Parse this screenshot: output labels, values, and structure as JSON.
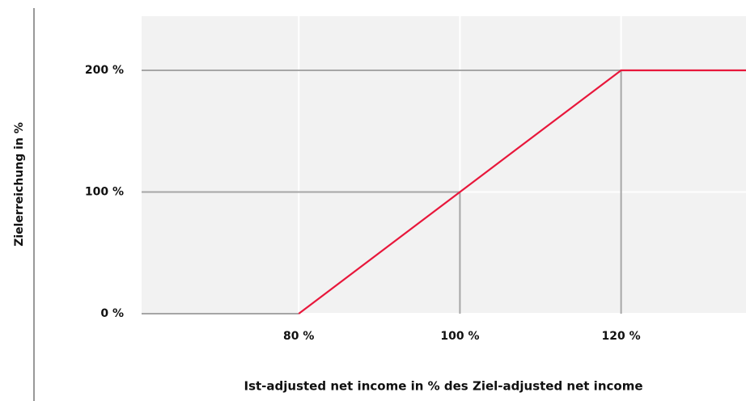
{
  "chart_data": {
    "type": "line",
    "x_label": "Ist-adjusted net income in % des Ziel-adjusted net income",
    "y_label": "Zielerreichung in %",
    "x": [
      80,
      100,
      120,
      135.5
    ],
    "series": [
      {
        "color": "#e8173b",
        "values": [
          0,
          100,
          200,
          200
        ]
      }
    ],
    "xlim": [
      60.5,
      135.5
    ],
    "xticks": [
      {
        "value": 80,
        "label": "80 %"
      },
      {
        "value": 100,
        "label": "100 %"
      },
      {
        "value": 120,
        "label": "120 %"
      }
    ],
    "ylim": [
      0,
      244.5
    ],
    "yticks": [
      {
        "value": 0,
        "label": "0 %"
      },
      {
        "value": 100,
        "label": "100 %"
      },
      {
        "value": 200,
        "label": "200 %"
      }
    ],
    "grid": true,
    "drop_lines": true
  }
}
